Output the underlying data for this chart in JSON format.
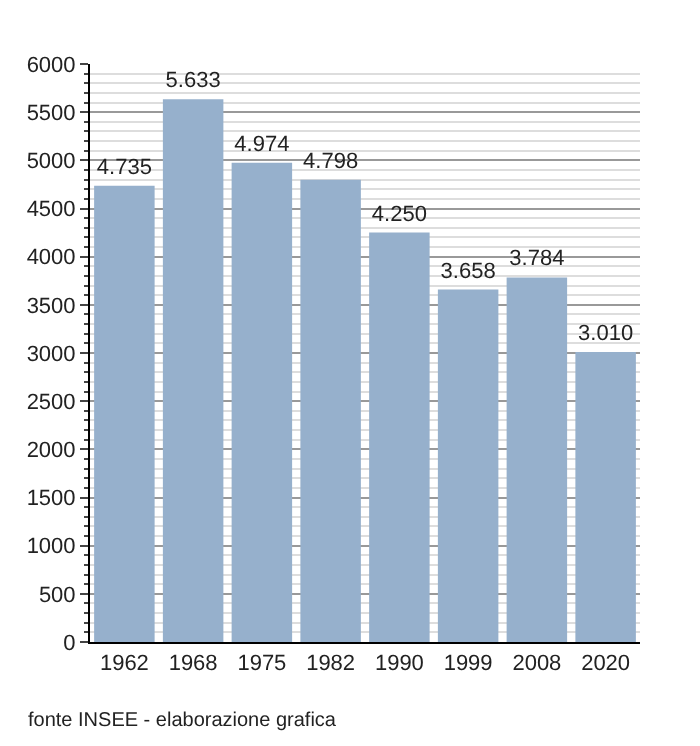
{
  "chart_data": {
    "type": "bar",
    "categories": [
      "1962",
      "1968",
      "1975",
      "1982",
      "1990",
      "1999",
      "2008",
      "2020"
    ],
    "values": [
      4735,
      5633,
      4974,
      4798,
      4250,
      3658,
      3784,
      3010
    ],
    "value_labels": [
      "4.735",
      "5.633",
      "4.974",
      "4.798",
      "4.250",
      "3.658",
      "3.784",
      "3.010"
    ],
    "color": "#96b0cc",
    "ylim": [
      0,
      6000
    ],
    "yticks": [
      0,
      500,
      1000,
      1500,
      2000,
      2500,
      3000,
      3500,
      4000,
      4500,
      5000,
      5500,
      6000
    ],
    "grid": "y",
    "annotations": [
      "fonte INSEE - elaborazione grafica"
    ]
  }
}
